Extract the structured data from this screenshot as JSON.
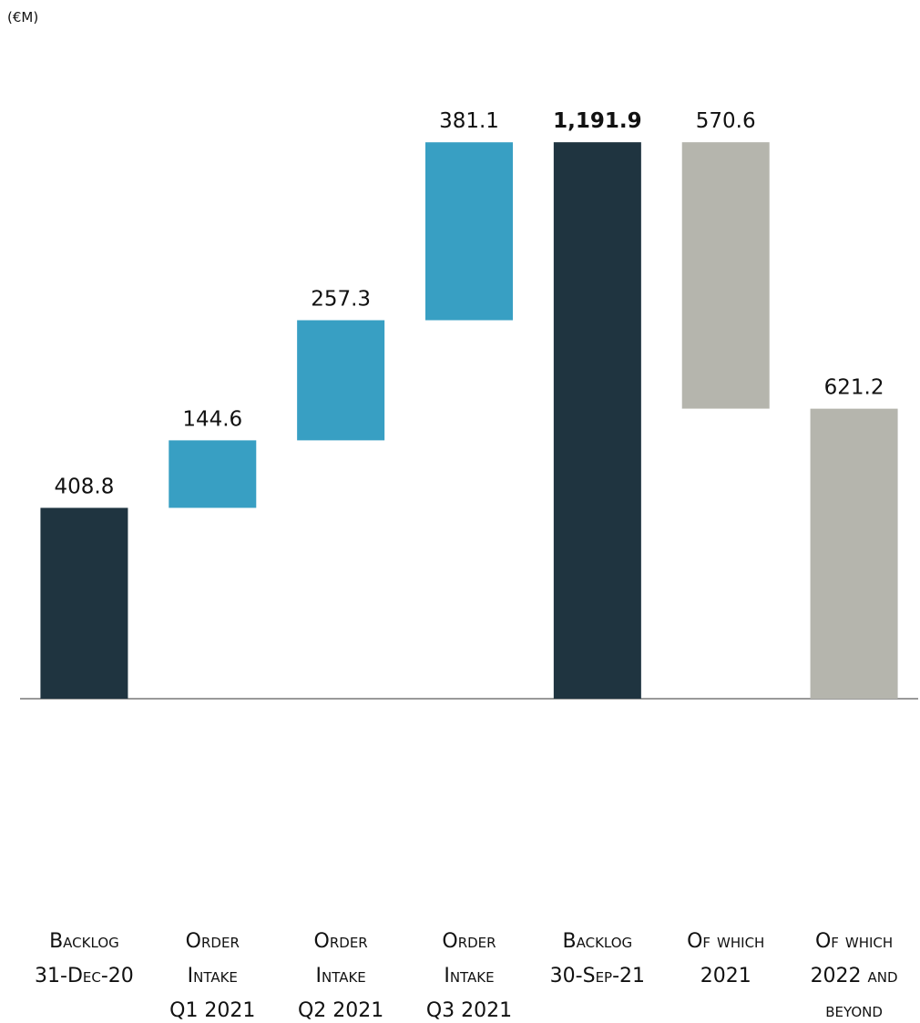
{
  "chart_data": {
    "type": "waterfall",
    "subtitle": "(€M)",
    "categories": [
      [
        "Backlog",
        "31-Dec-20"
      ],
      [
        "Order",
        "Intake",
        "Q1 2021"
      ],
      [
        "Order",
        "Intake",
        "Q2 2021"
      ],
      [
        "Order",
        "Intake",
        "Q3 2021"
      ],
      [
        "Backlog",
        "30-Sep-21"
      ],
      [
        "Of which",
        "2021"
      ],
      [
        "Of which",
        "2022 and",
        "beyond"
      ]
    ],
    "values": [
      408.8,
      144.6,
      257.3,
      381.1,
      1191.9,
      570.6,
      621.2
    ],
    "value_labels": [
      "408.8",
      "144.6",
      "257.3",
      "381.1",
      "1,191.9",
      "570.6",
      "621.2"
    ],
    "kinds": [
      "total",
      "increase",
      "increase",
      "increase",
      "total",
      "decrease",
      "total"
    ],
    "colors": [
      "#1f3440",
      "#389fc3",
      "#389fc3",
      "#389fc3",
      "#1f3440",
      "#b5b5ad",
      "#b5b5ad"
    ],
    "ylim": [
      0,
      1200
    ]
  }
}
